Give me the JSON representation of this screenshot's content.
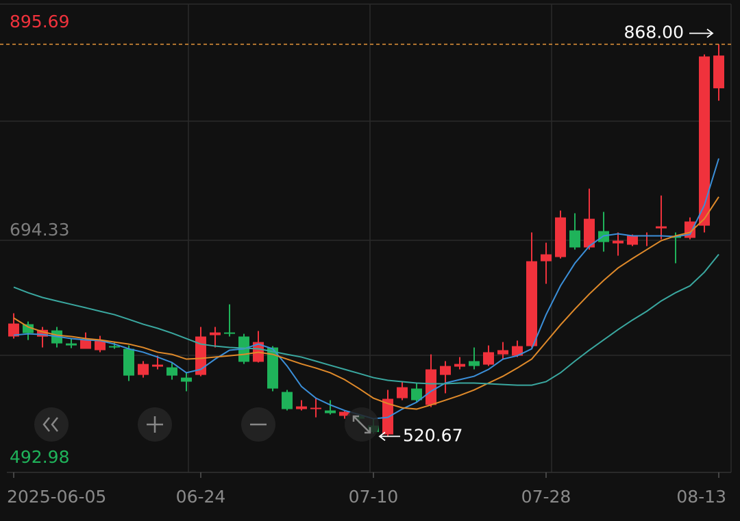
{
  "chart_data": {
    "type": "candlestick",
    "categories": [
      "2025-06-05",
      null,
      null,
      null,
      null,
      null,
      null,
      null,
      null,
      null,
      null,
      null,
      null,
      "06-24",
      null,
      null,
      null,
      null,
      null,
      null,
      null,
      null,
      null,
      null,
      null,
      "07-10",
      null,
      null,
      null,
      null,
      null,
      null,
      null,
      null,
      null,
      null,
      null,
      "07-28",
      null,
      null,
      null,
      null,
      null,
      null,
      null,
      null,
      null,
      null,
      null,
      "08-13"
    ],
    "open": [
      609.1,
      620,
      609,
      614.5,
      603,
      598.2,
      597,
      600.6,
      598.2,
      575.1,
      582.4,
      581.8,
      572.7,
      575.1,
      610.3,
      612.7,
      609.1,
      586.7,
      599.4,
      560,
      544.8,
      544.8,
      543.6,
      538.8,
      538.8,
      530.2,
      522.4,
      554.5,
      563,
      548.5,
      575.1,
      582.4,
      587.3,
      584.2,
      593.3,
      592.1,
      600.6,
      675.8,
      679.5,
      703.1,
      688,
      702.5,
      691.6,
      690.4,
      697.7,
      704.9,
      697.7,
      696.5,
      707.3,
      829
    ],
    "high": [
      629.7,
      622.4,
      617.6,
      617.6,
      607.3,
      612.7,
      609.7,
      603.6,
      601.2,
      587.3,
      592.1,
      586.1,
      577,
      617.6,
      617.6,
      637.6,
      611.5,
      614,
      600.6,
      561.8,
      552.7,
      554.5,
      552.7,
      543.6,
      540,
      536.3,
      561.8,
      569.1,
      567.9,
      593.3,
      587.3,
      590.9,
      599.4,
      601.2,
      604.2,
      605.5,
      701.3,
      692.2,
      720.7,
      718.3,
      740.1,
      719.5,
      701.3,
      699.5,
      701.3,
      734,
      701.3,
      714.6,
      859,
      868
    ],
    "low": [
      607.3,
      606,
      599.4,
      599.4,
      598.8,
      598.2,
      595.2,
      598.2,
      569.7,
      572.7,
      580,
      570.9,
      560.6,
      573.9,
      599.4,
      609.1,
      584.8,
      586.1,
      560.6,
      543.6,
      543.6,
      537.5,
      540,
      536.3,
      532,
      523,
      520.67,
      552.7,
      550.9,
      546.6,
      558.8,
      580,
      580,
      583,
      589.1,
      590.9,
      599.4,
      655.8,
      678.2,
      686.1,
      686.1,
      684.3,
      680.7,
      689.2,
      689.2,
      695.2,
      674,
      695.2,
      701.3,
      818
    ],
    "close": [
      620.6,
      612.1,
      615,
      603,
      601.2,
      606.7,
      605.5,
      599.4,
      574.5,
      584.8,
      584.2,
      574.5,
      569.1,
      609.1,
      612.7,
      611.5,
      586.7,
      604.2,
      563,
      544.8,
      547.2,
      546,
      541.2,
      542.4,
      536.3,
      524.5,
      553.9,
      564.2,
      552.7,
      580,
      583,
      584.8,
      583,
      595.2,
      597,
      600.6,
      675.8,
      681.9,
      714.6,
      688,
      713.4,
      692.8,
      694,
      698.9,
      698.9,
      706.7,
      696.5,
      711,
      857.2,
      858
    ],
    "up_color": "#f0323c",
    "down_color": "#1fb35a",
    "series": [
      {
        "color": "#3b8fd9",
        "values": [
          610.3,
          611.5,
          610.9,
          609.1,
          607.3,
          606.1,
          605.5,
          602.4,
          598.2,
          595.2,
          590.9,
          586.1,
          577,
          580,
          589.1,
          597,
          598.2,
          602.4,
          598.2,
          583,
          564.8,
          554.5,
          548.5,
          543.6,
          540,
          536.3,
          537.5,
          544.8,
          550.9,
          560.6,
          567.9,
          570.9,
          573.9,
          580,
          589.1,
          592.1,
          598.2,
          628.5,
          654,
          674,
          689.2,
          698.3,
          700.1,
          698.3,
          698.3,
          698.3,
          697.7,
          699.5,
          725.5,
          766.8
        ]
      },
      {
        "color": "#e08a2a",
        "values": [
          625.5,
          617.6,
          613.3,
          610.3,
          609.1,
          607.3,
          606.1,
          604.2,
          602.4,
          599.4,
          595.2,
          593.3,
          589.1,
          589.7,
          590.9,
          592.1,
          593.3,
          595.2,
          593.3,
          589.1,
          584.8,
          581.2,
          577,
          570.9,
          563,
          554.5,
          549.7,
          546,
          544.8,
          548.5,
          552.7,
          556.9,
          561.8,
          567.9,
          573.9,
          581.2,
          589.1,
          604.2,
          619.4,
          633.4,
          646.7,
          658.8,
          669.8,
          678.2,
          686.1,
          694,
          698.3,
          701.3,
          713.4,
          732.8
        ]
      },
      {
        "color": "#3aa8a0",
        "values": [
          652.8,
          647.9,
          643.7,
          640.6,
          637.6,
          634.6,
          631.5,
          628.5,
          624.3,
          620,
          616.4,
          612.1,
          607.3,
          602.4,
          600.6,
          599.4,
          598.8,
          598.2,
          595.8,
          593.3,
          590.9,
          587.3,
          583.6,
          580,
          576.4,
          572.7,
          570.3,
          569.1,
          567.9,
          567.3,
          567.3,
          567.9,
          567.9,
          567.3,
          566.6,
          566,
          566,
          569.1,
          577,
          587.3,
          597,
          606.1,
          615.2,
          623.7,
          631.5,
          640.6,
          647.9,
          654,
          666.1,
          681.9
        ]
      }
    ],
    "ylim": [
      492.98,
      895.69
    ],
    "yticks": [
      492.98,
      694.33,
      895.69
    ],
    "ytick_colors": [
      "#1fb35a",
      "#7d7d7d",
      "#f0323c"
    ],
    "annotations": [
      {
        "value": 868,
        "label": "868.00",
        "color": "#e8963a"
      },
      {
        "value": 520.67,
        "label": "520.67"
      }
    ]
  }
}
